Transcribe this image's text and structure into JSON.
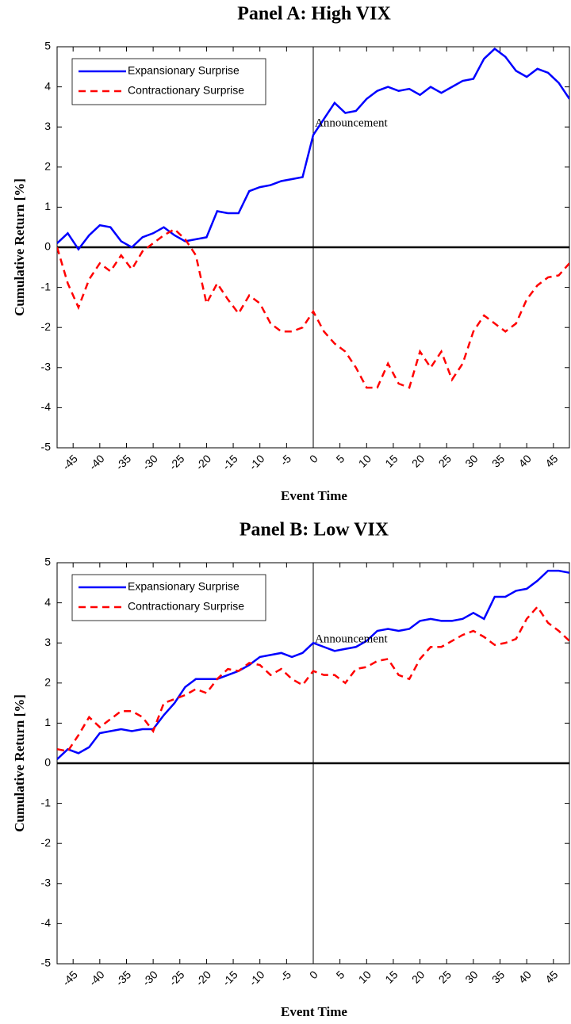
{
  "chart_data": [
    {
      "type": "line",
      "title": "Panel A: High VIX",
      "xlabel": "Event Time",
      "ylabel": "Cumulative Return [%]",
      "annotation": {
        "text": "Announcement",
        "x": 0,
        "y": 3
      },
      "x": [
        -48,
        -46,
        -44,
        -42,
        -40,
        -38,
        -36,
        -34,
        -32,
        -30,
        -28,
        -26,
        -24,
        -22,
        -20,
        -18,
        -16,
        -14,
        -12,
        -10,
        -8,
        -6,
        -4,
        -2,
        0,
        2,
        4,
        6,
        8,
        10,
        12,
        14,
        16,
        18,
        20,
        22,
        24,
        26,
        28,
        30,
        32,
        34,
        36,
        38,
        40,
        42,
        44,
        46,
        48
      ],
      "series": [
        {
          "name": "Expansionary Surprise",
          "color": "#0000ff",
          "line_style": "solid",
          "values": [
            0.1,
            0.35,
            -0.05,
            0.3,
            0.55,
            0.5,
            0.15,
            0.0,
            0.25,
            0.35,
            0.5,
            0.3,
            0.15,
            0.2,
            0.25,
            0.9,
            0.85,
            0.85,
            1.4,
            1.5,
            1.55,
            1.65,
            1.7,
            1.75,
            2.8,
            3.2,
            3.6,
            3.35,
            3.4,
            3.7,
            3.9,
            4.0,
            3.9,
            3.95,
            3.8,
            4.0,
            3.85,
            4.0,
            4.15,
            4.2,
            4.7,
            4.95,
            4.75,
            4.4,
            4.25,
            4.45,
            4.35,
            4.1,
            3.7
          ]
        },
        {
          "name": "Contractionary Surprise",
          "color": "#ff0000",
          "line_style": "dashed",
          "values": [
            0.0,
            -0.9,
            -1.5,
            -0.8,
            -0.4,
            -0.6,
            -0.2,
            -0.55,
            -0.1,
            0.1,
            0.3,
            0.45,
            0.2,
            -0.2,
            -1.4,
            -0.9,
            -1.3,
            -1.65,
            -1.2,
            -1.4,
            -1.9,
            -2.1,
            -2.1,
            -2.0,
            -1.6,
            -2.1,
            -2.4,
            -2.6,
            -3.0,
            -3.5,
            -3.5,
            -2.9,
            -3.4,
            -3.5,
            -2.6,
            -3.0,
            -2.6,
            -3.3,
            -2.9,
            -2.1,
            -1.7,
            -1.9,
            -2.1,
            -1.9,
            -1.3,
            -0.95,
            -0.75,
            -0.7,
            -0.4
          ]
        }
      ],
      "xlim": [
        -48,
        48
      ],
      "ylim": [
        -5,
        5
      ],
      "xticks": [
        -45,
        -40,
        -35,
        -30,
        -25,
        -20,
        -15,
        -10,
        -5,
        0,
        5,
        10,
        15,
        20,
        25,
        30,
        35,
        40,
        45
      ],
      "yticks": [
        -5,
        -4,
        -3,
        -2,
        -1,
        0,
        1,
        2,
        3,
        4,
        5
      ],
      "legend": "upper left",
      "grid": false
    },
    {
      "type": "line",
      "title": "Panel B: Low VIX",
      "xlabel": "Event Time",
      "ylabel": "Cumulative Return [%]",
      "annotation": {
        "text": "Announcement",
        "x": 0,
        "y": 3
      },
      "x": [
        -48,
        -46,
        -44,
        -42,
        -40,
        -38,
        -36,
        -34,
        -32,
        -30,
        -28,
        -26,
        -24,
        -22,
        -20,
        -18,
        -16,
        -14,
        -12,
        -10,
        -8,
        -6,
        -4,
        -2,
        0,
        2,
        4,
        6,
        8,
        10,
        12,
        14,
        16,
        18,
        20,
        22,
        24,
        26,
        28,
        30,
        32,
        34,
        36,
        38,
        40,
        42,
        44,
        46,
        48
      ],
      "series": [
        {
          "name": "Expansionary Surprise",
          "color": "#0000ff",
          "line_style": "solid",
          "values": [
            0.1,
            0.35,
            0.25,
            0.4,
            0.75,
            0.8,
            0.85,
            0.8,
            0.85,
            0.85,
            1.2,
            1.5,
            1.9,
            2.1,
            2.1,
            2.1,
            2.2,
            2.3,
            2.45,
            2.65,
            2.7,
            2.75,
            2.65,
            2.75,
            3.0,
            2.9,
            2.8,
            2.85,
            2.9,
            3.05,
            3.3,
            3.35,
            3.3,
            3.35,
            3.55,
            3.6,
            3.55,
            3.55,
            3.6,
            3.75,
            3.6,
            4.15,
            4.15,
            4.3,
            4.35,
            4.55,
            4.8,
            4.8,
            4.75
          ]
        },
        {
          "name": "Contractionary Surprise",
          "color": "#ff0000",
          "line_style": "dashed",
          "values": [
            0.35,
            0.3,
            0.7,
            1.15,
            0.9,
            1.1,
            1.3,
            1.3,
            1.15,
            0.8,
            1.5,
            1.6,
            1.7,
            1.85,
            1.75,
            2.1,
            2.35,
            2.3,
            2.5,
            2.45,
            2.2,
            2.35,
            2.1,
            1.95,
            2.3,
            2.2,
            2.2,
            2.0,
            2.35,
            2.4,
            2.55,
            2.6,
            2.2,
            2.1,
            2.6,
            2.9,
            2.9,
            3.05,
            3.2,
            3.3,
            3.15,
            2.95,
            3.0,
            3.1,
            3.6,
            3.9,
            3.5,
            3.3,
            3.05
          ]
        }
      ],
      "xlim": [
        -48,
        48
      ],
      "ylim": [
        -5,
        5
      ],
      "xticks": [
        -45,
        -40,
        -35,
        -30,
        -25,
        -20,
        -15,
        -10,
        -5,
        0,
        5,
        10,
        15,
        20,
        25,
        30,
        35,
        40,
        45
      ],
      "yticks": [
        -5,
        -4,
        -3,
        -2,
        -1,
        0,
        1,
        2,
        3,
        4,
        5
      ],
      "legend": "upper left",
      "grid": false
    }
  ]
}
